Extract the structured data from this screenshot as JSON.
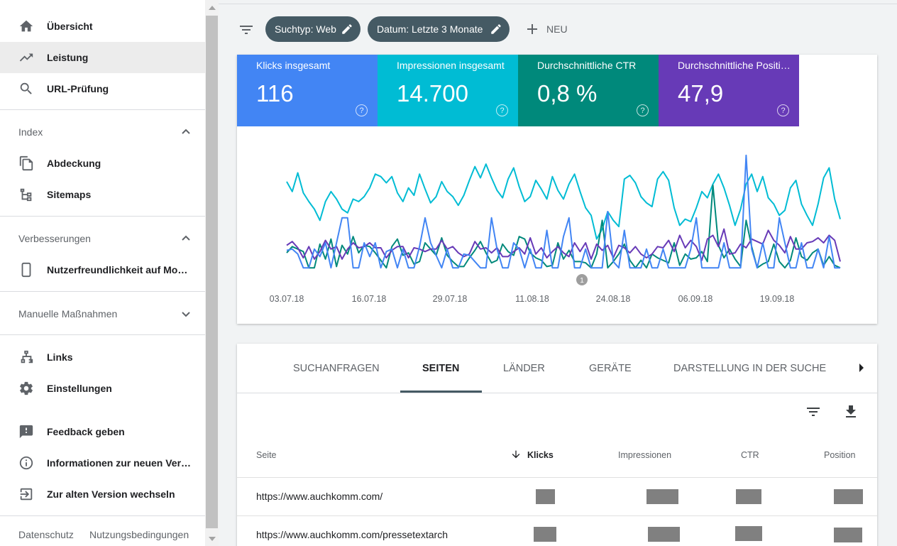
{
  "sidebar": {
    "items_top": [
      {
        "label": "Übersicht",
        "icon": "home-icon"
      },
      {
        "label": "Leistung",
        "icon": "trending-up-icon",
        "active": true
      },
      {
        "label": "URL-Prüfung",
        "icon": "search-icon"
      }
    ],
    "section_index": {
      "label": "Index",
      "expanded": true
    },
    "index_items": [
      {
        "label": "Abdeckung",
        "icon": "copy-icon"
      },
      {
        "label": "Sitemaps",
        "icon": "sitemap-icon"
      }
    ],
    "section_enhancements": {
      "label": "Verbesserungen",
      "expanded": true
    },
    "enhancements_items": [
      {
        "label": "Nutzerfreundlichkeit auf Mo…",
        "icon": "smartphone-icon"
      }
    ],
    "section_manual": {
      "label": "Manuelle Maßnahmen",
      "expanded": false
    },
    "items_misc": [
      {
        "label": "Links",
        "icon": "links-icon"
      },
      {
        "label": "Einstellungen",
        "icon": "gear-icon"
      }
    ],
    "items_help": [
      {
        "label": "Feedback geben",
        "icon": "feedback-icon"
      },
      {
        "label": "Informationen zur neuen Ver…",
        "icon": "info-icon"
      },
      {
        "label": "Zur alten Version wechseln",
        "icon": "exit-icon"
      }
    ],
    "footer": {
      "privacy": "Datenschutz",
      "terms": "Nutzungsbedingungen"
    }
  },
  "filters": {
    "chips": [
      {
        "label": "Suchtyp: Web"
      },
      {
        "label": "Datum: Letzte 3 Monate"
      }
    ],
    "new_label": "NEU"
  },
  "metrics": [
    {
      "label": "Klicks insgesamt",
      "value": "116",
      "color": "#4285f4"
    },
    {
      "label": "Impressionen insgesamt",
      "value": "14.700",
      "color": "#00bcd4"
    },
    {
      "label": "Durchschnittliche CTR",
      "value": "0,8 %",
      "color": "#00897b"
    },
    {
      "label": "Durchschnittliche Positi…",
      "value": "47,9",
      "color": "#673ab7"
    }
  ],
  "chart_data": {
    "type": "line",
    "x_ticks": [
      "03.07.18",
      "16.07.18",
      "29.07.18",
      "11.08.18",
      "24.08.18",
      "06.09.18",
      "19.09.18"
    ],
    "annotation": "1",
    "series": [
      {
        "color": "#00bcd4",
        "values": [
          0.74,
          0.66,
          0.81,
          0.65,
          0.58,
          0.52,
          0.43,
          0.58,
          0.66,
          0.6,
          0.52,
          0.49,
          0.6,
          0.58,
          0.62,
          0.69,
          0.8,
          0.78,
          0.73,
          0.78,
          0.65,
          0.58,
          0.69,
          0.63,
          0.8,
          0.68,
          0.57,
          0.62,
          0.74,
          0.66,
          0.62,
          0.55,
          0.63,
          0.75,
          0.86,
          0.77,
          0.88,
          0.77,
          0.67,
          0.61,
          0.76,
          0.85,
          0.7,
          0.58,
          0.62,
          0.75,
          0.68,
          0.6,
          0.78,
          0.67,
          0.6,
          0.72,
          0.8,
          0.66,
          0.53,
          0.47,
          0.28,
          0.36,
          0.5,
          0.43,
          0.38,
          0.76,
          0.79,
          0.73,
          0.62,
          0.57,
          0.54,
          0.76,
          0.82,
          0.75,
          0.53,
          0.39,
          0.44,
          0.42,
          0.53,
          0.66,
          0.61,
          0.72,
          0.8,
          0.69,
          0.55,
          0.39,
          0.52,
          0.72,
          0.8,
          0.66,
          0.78,
          0.61,
          0.56,
          0.47,
          0.51,
          0.69,
          0.75,
          0.56,
          0.47,
          0.39,
          0.56,
          0.77,
          0.85,
          0.6,
          0.44
        ]
      },
      {
        "color": "#00897b",
        "values": [
          0.17,
          0.22,
          0.2,
          0.18,
          0.05,
          0.05,
          0.24,
          0.12,
          0.28,
          0.06,
          0.23,
          0.16,
          0.3,
          0.17,
          0.23,
          0.22,
          0.17,
          0.11,
          0.05,
          0.22,
          0.28,
          0.15,
          0.17,
          0.08,
          0.1,
          0.25,
          0.2,
          0.15,
          0.29,
          0.15,
          0.1,
          0.06,
          0.06,
          0.13,
          0.19,
          0.26,
          0.17,
          0.09,
          0.11,
          0.24,
          0.18,
          0.15,
          0.3,
          0.28,
          0.17,
          0.13,
          0.11,
          0.06,
          0.07,
          0.25,
          0.12,
          0.19,
          0.1,
          0.1,
          0.09,
          0.05,
          0.16,
          0.43,
          0.05,
          0.1,
          0.16,
          0.24,
          0.11,
          0.05,
          0.11,
          0.05,
          0.16,
          0.13,
          0.11,
          0.09,
          0.25,
          0.07,
          0.16,
          0.12,
          0.13,
          0.18,
          0.1,
          0.71,
          0.23,
          0.13,
          0.2,
          0.12,
          0.06,
          0.43,
          0.22,
          0.05,
          0.08,
          0.1,
          0.24,
          0.1,
          0.05,
          0.11,
          0.29,
          0.14,
          0.11,
          0.17,
          0.2,
          0.07,
          0.14,
          0.07,
          0.05
        ]
      },
      {
        "color": "#673ab7",
        "values": [
          0.23,
          0.26,
          0.21,
          0.13,
          0.22,
          0.12,
          0.18,
          0.27,
          0.2,
          0.22,
          0.12,
          0.2,
          0.25,
          0.21,
          0.22,
          0.25,
          0.21,
          0.21,
          0.13,
          0.19,
          0.22,
          0.22,
          0.13,
          0.21,
          0.2,
          0.18,
          0.2,
          0.2,
          0.27,
          0.2,
          0.22,
          0.17,
          0.14,
          0.16,
          0.26,
          0.2,
          0.21,
          0.17,
          0.21,
          0.14,
          0.14,
          0.18,
          0.21,
          0.16,
          0.29,
          0.16,
          0.21,
          0.13,
          0.18,
          0.22,
          0.17,
          0.14,
          0.25,
          0.18,
          0.25,
          0.12,
          0.24,
          0.19,
          0.23,
          0.13,
          0.23,
          0.21,
          0.17,
          0.22,
          0.16,
          0.13,
          0.16,
          0.22,
          0.21,
          0.27,
          0.18,
          0.31,
          0.21,
          0.27,
          0.22,
          0.11,
          0.28,
          0.31,
          0.22,
          0.36,
          0.16,
          0.17,
          0.24,
          0.21,
          0.28,
          0.26,
          0.24,
          0.35,
          0.27,
          0.23,
          0.17,
          0.3,
          0.2,
          0.2,
          0.25,
          0.26,
          0.29,
          0.25,
          0.31,
          0.27,
          0.1
        ]
      },
      {
        "color": "#4285f4",
        "values": [
          0.19,
          0.2,
          0.16,
          0.05,
          0.05,
          0.2,
          0.14,
          0.25,
          0.05,
          0.25,
          0.45,
          0.45,
          0.05,
          0.05,
          0.25,
          0.14,
          0.25,
          0.05,
          0.18,
          0.2,
          0.05,
          0.2,
          0.05,
          0.05,
          0.22,
          0.45,
          0.25,
          0.15,
          0.05,
          0.2,
          0.05,
          0.05,
          0.16,
          0.15,
          0.1,
          0.05,
          0.05,
          0.45,
          0.2,
          0.05,
          0.05,
          0.25,
          0.2,
          0.05,
          0.2,
          0.05,
          0.05,
          0.35,
          0.05,
          0.05,
          0.3,
          0.45,
          0.05,
          0.05,
          0.2,
          0.05,
          0.05,
          0.05,
          0.5,
          0.1,
          0.05,
          0.35,
          0.05,
          0.05,
          0.05,
          0.2,
          0.05,
          0.05,
          0.2,
          0.05,
          0.05,
          0.05,
          0.05,
          0.2,
          0.45,
          0.05,
          0.05,
          0.05,
          0.05,
          0.25,
          0.05,
          0.05,
          0.05,
          0.95,
          0.2,
          0.05,
          0.25,
          0.05,
          0.05,
          0.45,
          0.25,
          0.05,
          0.05,
          0.25,
          0.05,
          0.05,
          0.2,
          0.05,
          0.3,
          0.05,
          0.05
        ]
      }
    ]
  },
  "tabs": [
    {
      "label": "SUCHANFRAGEN"
    },
    {
      "label": "SEITEN",
      "active": true
    },
    {
      "label": "LÄNDER"
    },
    {
      "label": "GERÄTE"
    },
    {
      "label": "DARSTELLUNG IN DER SUCHE"
    }
  ],
  "table": {
    "columns": {
      "page": "Seite",
      "clicks": "Klicks",
      "impressions": "Impressionen",
      "ctr": "CTR",
      "position": "Position"
    },
    "sort": {
      "column": "clicks",
      "direction": "descending"
    },
    "rows": [
      {
        "url": "https://www.auchkomm.com/"
      },
      {
        "url": "https://www.auchkomm.com/pressetextarch"
      }
    ]
  }
}
